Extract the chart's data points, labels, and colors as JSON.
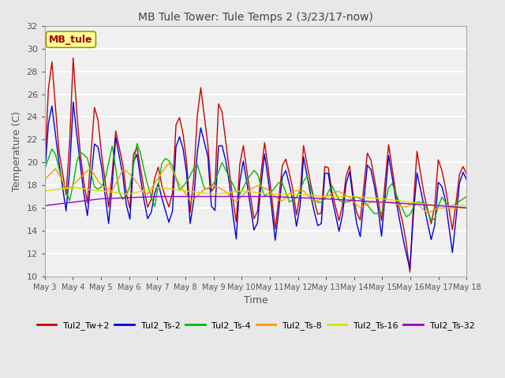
{
  "title": "MB Tule Tower: Tule Temps 2 (3/23/17-now)",
  "xlabel": "Time",
  "ylabel": "Temperature (C)",
  "ylim": [
    10,
    32
  ],
  "xlim": [
    0,
    15
  ],
  "xtick_labels": [
    "May 3",
    "May 4",
    "May 5",
    "May 6",
    "May 7",
    "May 8",
    "May 9",
    "May 10",
    "May 11",
    "May 12",
    "May 13",
    "May 14",
    "May 15",
    "May 16",
    "May 17",
    "May 18"
  ],
  "ytick_labels": [
    "10",
    "12",
    "14",
    "16",
    "18",
    "20",
    "22",
    "24",
    "26",
    "28",
    "30",
    "32"
  ],
  "ytick_vals": [
    10,
    12,
    14,
    16,
    18,
    20,
    22,
    24,
    26,
    28,
    30,
    32
  ],
  "annotation_text": "MB_tule",
  "legend_labels": [
    "Tul2_Tw+2",
    "Tul2_Ts-2",
    "Tul2_Ts-4",
    "Tul2_Ts-8",
    "Tul2_Ts-16",
    "Tul2_Ts-32"
  ],
  "line_colors": [
    "#cc0000",
    "#0000dd",
    "#00bb00",
    "#ff9900",
    "#dddd00",
    "#9900cc"
  ],
  "background_color": "#e8e8e8",
  "plot_bg_color": "#f0f0f0"
}
